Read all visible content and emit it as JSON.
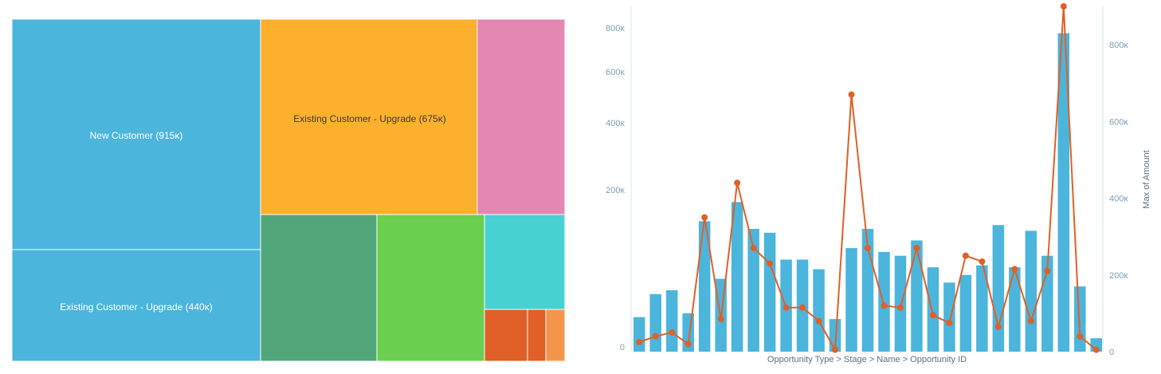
{
  "chart_data": [
    {
      "type": "treemap",
      "colors": {
        "new_customer": "#4bb5dc",
        "upgrade_orange": "#fdb02b",
        "pink": "#e487b3",
        "dark_green": "#52a77a",
        "light_green": "#6acf4f",
        "teal": "#48d1d3",
        "dark_orange": "#e06027",
        "light_orange": "#f5954b"
      },
      "tiles": [
        {
          "label": "New Customer (915ĸ)",
          "value": 915,
          "color": "#4bb5dc"
        },
        {
          "label": "Existing Customer - Upgrade (440ĸ)",
          "value": 440,
          "color": "#4bb5dc"
        },
        {
          "label": "Existing Customer - Upgrade (675ĸ)",
          "value": 675,
          "color": "#fdb02b"
        },
        {
          "label": "",
          "value": 280,
          "color": "#e487b3"
        },
        {
          "label": "",
          "value": 270,
          "color": "#52a77a"
        },
        {
          "label": "",
          "value": 250,
          "color": "#6acf4f"
        },
        {
          "label": "",
          "value": 150,
          "color": "#48d1d3"
        },
        {
          "label": "",
          "value": 45,
          "color": "#e06027"
        },
        {
          "label": "",
          "value": 20,
          "color": "#e06027"
        },
        {
          "label": "",
          "value": 20,
          "color": "#f5954b"
        }
      ]
    },
    {
      "type": "bar+line",
      "xlabel": "Opportunity Type > Stage > Name > Opportunity ID",
      "ylabel_right": "Max of Amount",
      "left_axis_ticks": [
        "0",
        "200ĸ",
        "400ĸ",
        "600ĸ",
        "800ĸ"
      ],
      "right_axis_ticks": [
        "0",
        "200ĸ",
        "400ĸ",
        "600ĸ",
        "800ĸ"
      ],
      "right_ylim": [
        0,
        900000
      ],
      "bar_color": "#4bb5dc",
      "line_color": "#e06027",
      "bars": [
        90000,
        150000,
        160000,
        100000,
        340000,
        190000,
        390000,
        320000,
        310000,
        240000,
        240000,
        215000,
        85000,
        270000,
        320000,
        260000,
        250000,
        290000,
        220000,
        180000,
        200000,
        225000,
        330000,
        220000,
        315000,
        250000,
        830000,
        170000,
        35000
      ],
      "line": [
        25000,
        40000,
        50000,
        20000,
        350000,
        85000,
        440000,
        270000,
        230000,
        115000,
        115000,
        80000,
        5000,
        670000,
        270000,
        120000,
        115000,
        270000,
        95000,
        75000,
        250000,
        235000,
        65000,
        215000,
        80000,
        210000,
        900000,
        40000,
        5000
      ]
    }
  ]
}
